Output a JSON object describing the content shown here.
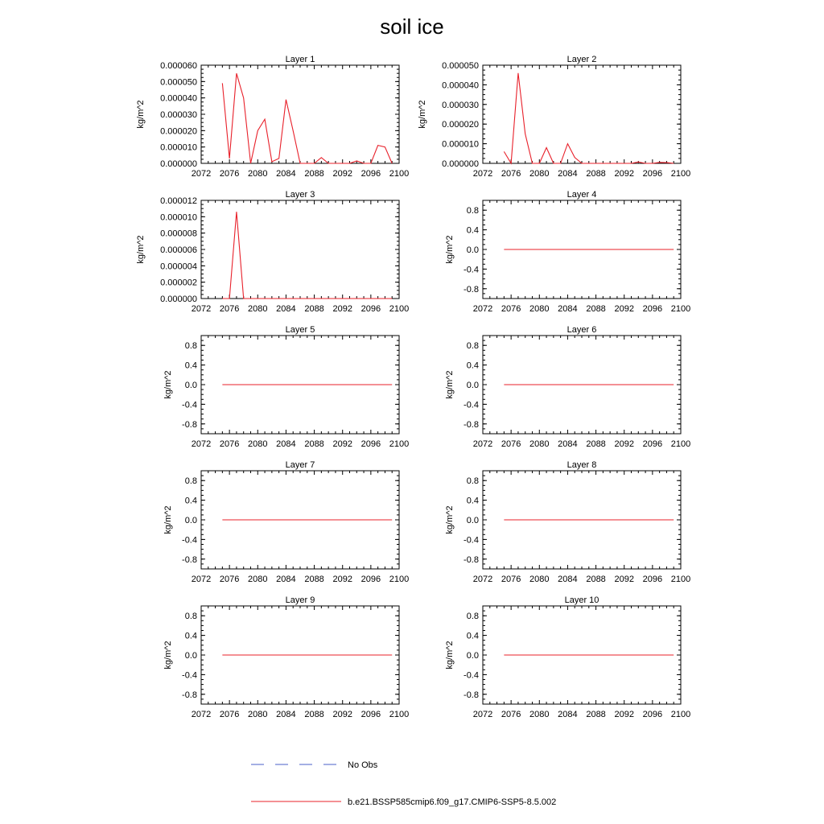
{
  "title": "soil ice",
  "chart_data": {
    "type": "line",
    "panels": [
      {
        "title": "Layer 1",
        "ylabel": "kg/m^2",
        "xlim": [
          2072,
          2100
        ],
        "ylim": [
          0,
          6e-05
        ],
        "xticks": [
          "2072",
          "2076",
          "2080",
          "2084",
          "2088",
          "2092",
          "2096",
          "2100"
        ],
        "yticks": [
          "0.000000",
          "0.000010",
          "0.000020",
          "0.000030",
          "0.000040",
          "0.000050",
          "0.000060"
        ],
        "series": [
          {
            "x": [
              2075,
              2076,
              2077,
              2078,
              2079,
              2080,
              2081,
              2082,
              2083,
              2084,
              2085,
              2086,
              2087,
              2088,
              2089,
              2090,
              2091,
              2092,
              2093,
              2094,
              2095,
              2096,
              2097,
              2098,
              2099
            ],
            "values": [
              4.9e-05,
              3e-06,
              5.5e-05,
              4e-05,
              0.0,
              2e-05,
              2.7e-05,
              1e-06,
              3e-06,
              3.9e-05,
              2e-05,
              0.0,
              0.0,
              0.0,
              3.5e-06,
              0.0,
              0.0,
              0.0,
              0.0,
              1.5e-06,
              0.0,
              0.0,
              1.1e-05,
              1e-05,
              0.0
            ]
          }
        ]
      },
      {
        "title": "Layer 2",
        "ylabel": "kg/m^2",
        "xlim": [
          2072,
          2100
        ],
        "ylim": [
          0,
          5e-05
        ],
        "xticks": [
          "2072",
          "2076",
          "2080",
          "2084",
          "2088",
          "2092",
          "2096",
          "2100"
        ],
        "yticks": [
          "0.000000",
          "0.000010",
          "0.000020",
          "0.000030",
          "0.000040",
          "0.000050"
        ],
        "series": [
          {
            "x": [
              2075,
              2076,
              2077,
              2078,
              2079,
              2080,
              2081,
              2082,
              2083,
              2084,
              2085,
              2086,
              2087,
              2088,
              2089,
              2090,
              2091,
              2092,
              2093,
              2094,
              2095,
              2096,
              2097,
              2098,
              2099
            ],
            "values": [
              6e-06,
              0.0,
              4.6e-05,
              1.5e-05,
              0.0,
              0.0,
              8e-06,
              0.0,
              0.0,
              1e-05,
              3e-06,
              0.0,
              0.0,
              0.0,
              0.0,
              0.0,
              0.0,
              0.0,
              0.0,
              7e-07,
              0.0,
              0.0,
              5e-07,
              4e-07,
              0.0
            ]
          }
        ]
      },
      {
        "title": "Layer 3",
        "ylabel": "kg/m^2",
        "xlim": [
          2072,
          2100
        ],
        "ylim": [
          0,
          1.2e-05
        ],
        "xticks": [
          "2072",
          "2076",
          "2080",
          "2084",
          "2088",
          "2092",
          "2096",
          "2100"
        ],
        "yticks": [
          "0.000000",
          "0.000002",
          "0.000004",
          "0.000006",
          "0.000008",
          "0.000010",
          "0.000012"
        ],
        "series": [
          {
            "x": [
              2075,
              2076,
              2077,
              2078,
              2079,
              2080,
              2081,
              2082,
              2083,
              2084,
              2085,
              2086,
              2087,
              2088,
              2089,
              2090,
              2091,
              2092,
              2093,
              2094,
              2095,
              2096,
              2097,
              2098,
              2099
            ],
            "values": [
              0,
              0,
              1.06e-05,
              0,
              0,
              0,
              0,
              0,
              0,
              0,
              0,
              0,
              0,
              0,
              0,
              0,
              0,
              0,
              0,
              0,
              0,
              0,
              0,
              0,
              0
            ]
          }
        ]
      },
      {
        "title": "Layer 4",
        "ylabel": "kg/m^2",
        "xlim": [
          2072,
          2100
        ],
        "ylim": [
          -1,
          1
        ],
        "xticks": [
          "2072",
          "2076",
          "2080",
          "2084",
          "2088",
          "2092",
          "2096",
          "2100"
        ],
        "yticks": [
          "-0.8",
          "-0.4",
          "0.0",
          "0.4",
          "0.8"
        ],
        "series": [
          {
            "x": [
              2075,
              2099
            ],
            "values": [
              0,
              0
            ]
          }
        ]
      },
      {
        "title": "Layer 5",
        "ylabel": "kg/m^2",
        "xlim": [
          2072,
          2100
        ],
        "ylim": [
          -1,
          1
        ],
        "xticks": [
          "2072",
          "2076",
          "2080",
          "2084",
          "2088",
          "2092",
          "2096",
          "2100"
        ],
        "yticks": [
          "-0.8",
          "-0.4",
          "0.0",
          "0.4",
          "0.8"
        ],
        "series": [
          {
            "x": [
              2075,
              2099
            ],
            "values": [
              0,
              0
            ]
          }
        ]
      },
      {
        "title": "Layer 6",
        "ylabel": "kg/m^2",
        "xlim": [
          2072,
          2100
        ],
        "ylim": [
          -1,
          1
        ],
        "xticks": [
          "2072",
          "2076",
          "2080",
          "2084",
          "2088",
          "2092",
          "2096",
          "2100"
        ],
        "yticks": [
          "-0.8",
          "-0.4",
          "0.0",
          "0.4",
          "0.8"
        ],
        "series": [
          {
            "x": [
              2075,
              2099
            ],
            "values": [
              0,
              0
            ]
          }
        ]
      },
      {
        "title": "Layer 7",
        "ylabel": "kg/m^2",
        "xlim": [
          2072,
          2100
        ],
        "ylim": [
          -1,
          1
        ],
        "xticks": [
          "2072",
          "2076",
          "2080",
          "2084",
          "2088",
          "2092",
          "2096",
          "2100"
        ],
        "yticks": [
          "-0.8",
          "-0.4",
          "0.0",
          "0.4",
          "0.8"
        ],
        "series": [
          {
            "x": [
              2075,
              2099
            ],
            "values": [
              0,
              0
            ]
          }
        ]
      },
      {
        "title": "Layer 8",
        "ylabel": "kg/m^2",
        "xlim": [
          2072,
          2100
        ],
        "ylim": [
          -1,
          1
        ],
        "xticks": [
          "2072",
          "2076",
          "2080",
          "2084",
          "2088",
          "2092",
          "2096",
          "2100"
        ],
        "yticks": [
          "-0.8",
          "-0.4",
          "0.0",
          "0.4",
          "0.8"
        ],
        "series": [
          {
            "x": [
              2075,
              2099
            ],
            "values": [
              0,
              0
            ]
          }
        ]
      },
      {
        "title": "Layer 9",
        "ylabel": "kg/m^2",
        "xlim": [
          2072,
          2100
        ],
        "ylim": [
          -1,
          1
        ],
        "xticks": [
          "2072",
          "2076",
          "2080",
          "2084",
          "2088",
          "2092",
          "2096",
          "2100"
        ],
        "yticks": [
          "-0.8",
          "-0.4",
          "0.0",
          "0.4",
          "0.8"
        ],
        "series": [
          {
            "x": [
              2075,
              2099
            ],
            "values": [
              0,
              0
            ]
          }
        ]
      },
      {
        "title": "Layer 10",
        "ylabel": "kg/m^2",
        "xlim": [
          2072,
          2100
        ],
        "ylim": [
          -1,
          1
        ],
        "xticks": [
          "2072",
          "2076",
          "2080",
          "2084",
          "2088",
          "2092",
          "2096",
          "2100"
        ],
        "yticks": [
          "-0.8",
          "-0.4",
          "0.0",
          "0.4",
          "0.8"
        ],
        "series": [
          {
            "x": [
              2075,
              2099
            ],
            "values": [
              0,
              0
            ]
          }
        ]
      }
    ],
    "legend": [
      {
        "label": "No Obs",
        "color": "#4a5fc8",
        "style": "dashed"
      },
      {
        "label": "b.e21.BSSP585cmip6.f09_g17.CMIP6-SSP5-8.5.002",
        "color": "#e8202a",
        "style": "solid"
      }
    ]
  }
}
